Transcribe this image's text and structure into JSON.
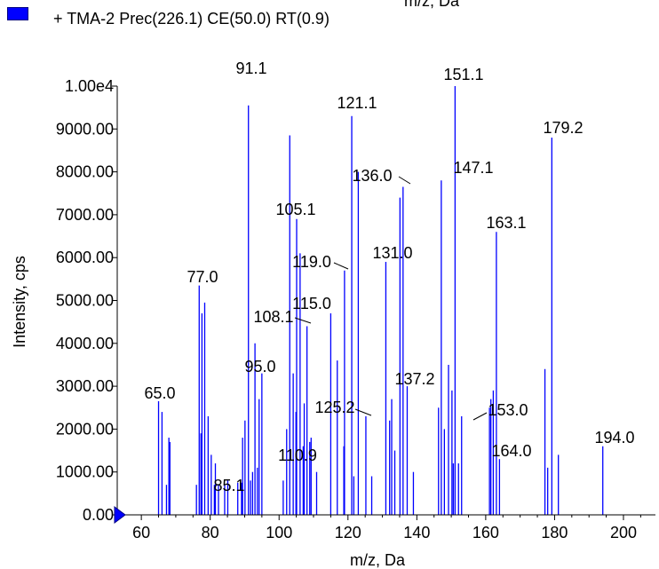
{
  "top_cut_text": "m/z, Da",
  "chart_data": {
    "type": "bar",
    "series": [
      {
        "name": "+ TMA-2 Prec(226.1) CE(50.0) RT(0.9)",
        "color": "#0000ff"
      }
    ],
    "xlabel": "m/z, Da",
    "ylabel": "Intensity, cps",
    "xlim": [
      53,
      208
    ],
    "ylim": [
      0,
      10000
    ],
    "xticks": [
      60,
      80,
      100,
      120,
      140,
      160,
      180,
      200
    ],
    "yticks": [
      {
        "value": 0,
        "label": "0.00"
      },
      {
        "value": 1000,
        "label": "1000.00"
      },
      {
        "value": 2000,
        "label": "2000.00"
      },
      {
        "value": 3000,
        "label": "3000.00"
      },
      {
        "value": 4000,
        "label": "4000.00"
      },
      {
        "value": 5000,
        "label": "5000.00"
      },
      {
        "value": 6000,
        "label": "6000.00"
      },
      {
        "value": 7000,
        "label": "7000.00"
      },
      {
        "value": 8000,
        "label": "8000.00"
      },
      {
        "value": 9000,
        "label": "9000.00"
      },
      {
        "value": 10000,
        "label": "1.00e4"
      }
    ],
    "peaks": [
      [
        65.0,
        2650
      ],
      [
        66.0,
        2400
      ],
      [
        67.3,
        700
      ],
      [
        68.0,
        1800
      ],
      [
        68.3,
        1700
      ],
      [
        76.0,
        700
      ],
      [
        76.8,
        5350
      ],
      [
        77.3,
        1900
      ],
      [
        77.6,
        4700
      ],
      [
        78.4,
        4950
      ],
      [
        79.4,
        2300
      ],
      [
        80.3,
        1400
      ],
      [
        81.2,
        700
      ],
      [
        81.5,
        1200
      ],
      [
        82.4,
        700
      ],
      [
        84.2,
        700
      ],
      [
        85.1,
        800
      ],
      [
        88.0,
        750
      ],
      [
        89.1,
        750
      ],
      [
        89.4,
        1800
      ],
      [
        90.1,
        2200
      ],
      [
        91.1,
        9550
      ],
      [
        91.7,
        800
      ],
      [
        92.3,
        1000
      ],
      [
        93.0,
        4000
      ],
      [
        93.7,
        1100
      ],
      [
        94.2,
        2700
      ],
      [
        95.0,
        3300
      ],
      [
        101.2,
        800
      ],
      [
        102.2,
        2000
      ],
      [
        103.1,
        8850
      ],
      [
        104.1,
        3300
      ],
      [
        104.9,
        2400
      ],
      [
        105.1,
        6900
      ],
      [
        106.1,
        6100
      ],
      [
        107.0,
        1600
      ],
      [
        107.3,
        2600
      ],
      [
        108.1,
        4400
      ],
      [
        108.9,
        1700
      ],
      [
        109.3,
        1800
      ],
      [
        110.9,
        1000
      ],
      [
        115.0,
        4700
      ],
      [
        116.9,
        3600
      ],
      [
        118.8,
        1600
      ],
      [
        119.0,
        5700
      ],
      [
        121.1,
        9300
      ],
      [
        121.7,
        900
      ],
      [
        123.0,
        8000
      ],
      [
        125.2,
        2300
      ],
      [
        126.9,
        900
      ],
      [
        131.0,
        5900
      ],
      [
        132.1,
        2200
      ],
      [
        132.7,
        2700
      ],
      [
        133.6,
        1500
      ],
      [
        135.1,
        7400
      ],
      [
        136.0,
        7650
      ],
      [
        137.2,
        3000
      ],
      [
        139.0,
        1000
      ],
      [
        146.3,
        2500
      ],
      [
        147.1,
        7800
      ],
      [
        148.0,
        2000
      ],
      [
        149.2,
        3500
      ],
      [
        150.2,
        2900
      ],
      [
        150.6,
        1200
      ],
      [
        151.1,
        10000
      ],
      [
        152.1,
        1200
      ],
      [
        153.0,
        2300
      ],
      [
        161.1,
        2500
      ],
      [
        161.5,
        2700
      ],
      [
        162.2,
        2900
      ],
      [
        163.1,
        6600
      ],
      [
        164.0,
        1300
      ],
      [
        177.2,
        3400
      ],
      [
        178.0,
        1100
      ],
      [
        179.2,
        8800
      ],
      [
        181.1,
        1400
      ],
      [
        194.0,
        1600
      ]
    ],
    "annotations": [
      {
        "text": "65.0",
        "x": 65.0
      },
      {
        "text": "77.0",
        "x": 77.0
      },
      {
        "text": "85.1",
        "x": 85.1
      },
      {
        "text": "91.1",
        "x": 91.1
      },
      {
        "text": "95.0",
        "x": 95.0
      },
      {
        "text": "105.1",
        "x": 105.1
      },
      {
        "text": "108.1",
        "x": 108.1
      },
      {
        "text": "110.9",
        "x": 110.9
      },
      {
        "text": "115.0",
        "x": 115.0
      },
      {
        "text": "119.0",
        "x": 119.0
      },
      {
        "text": "121.1",
        "x": 121.1
      },
      {
        "text": "125.2",
        "x": 125.2
      },
      {
        "text": "131.0",
        "x": 131.0
      },
      {
        "text": "136.0",
        "x": 136.0
      },
      {
        "text": "137.2",
        "x": 137.2
      },
      {
        "text": "147.1",
        "x": 147.1
      },
      {
        "text": "151.1",
        "x": 151.1
      },
      {
        "text": "153.0",
        "x": 153.0
      },
      {
        "text": "163.1",
        "x": 163.1
      },
      {
        "text": "164.0",
        "x": 164.0
      },
      {
        "text": "179.2",
        "x": 179.2
      },
      {
        "text": "194.0",
        "x": 194.0
      }
    ]
  }
}
